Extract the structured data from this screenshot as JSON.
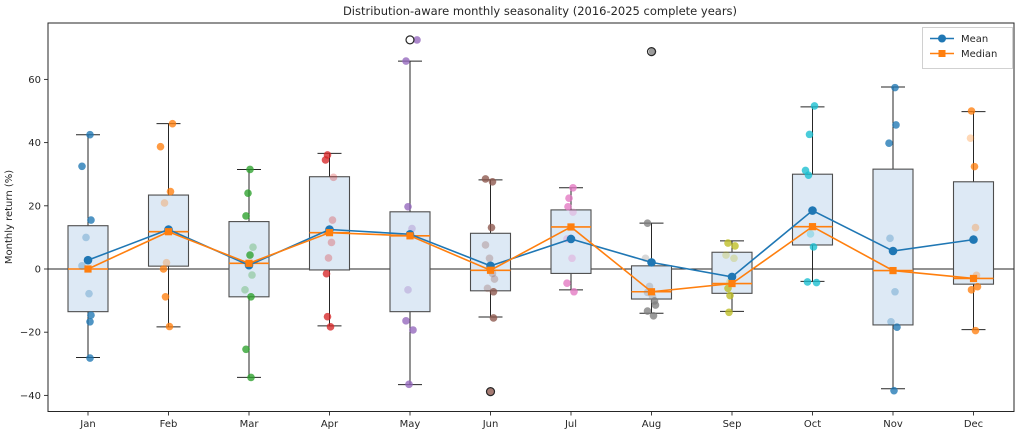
{
  "title": "Distribution-aware monthly seasonality (2016-2025 complete years)",
  "ylabel": "Monthly return (%)",
  "legend": {
    "items": [
      {
        "label": "Mean",
        "color": "#1f77b4",
        "marker": "circle"
      },
      {
        "label": "Median",
        "color": "#ff7f0e",
        "marker": "square"
      }
    ]
  },
  "colors": {
    "axis": "#262626",
    "box_fill": "#dde9f5",
    "box_edge": "#4d4d4d",
    "mean_line": "#1f77b4",
    "median_line": "#ff7f0e"
  },
  "chart_data": {
    "type": "box",
    "title": "Distribution-aware monthly seasonality (2016-2025 complete years)",
    "xlabel": "",
    "ylabel": "Monthly return (%)",
    "categories": [
      "Jan",
      "Feb",
      "Mar",
      "Apr",
      "May",
      "Jun",
      "Jul",
      "Aug",
      "Sep",
      "Oct",
      "Nov",
      "Dec"
    ],
    "yticks": [
      -40,
      -20,
      0,
      20,
      40,
      60
    ],
    "ylim": [
      -45,
      78
    ],
    "grid": false,
    "legend_position": "upper right",
    "zero_line": 0,
    "series": [
      {
        "name": "Mean",
        "marker": "circle",
        "color": "#1f77b4",
        "values": [
          2.8,
          12.5,
          1.2,
          12.5,
          11.0,
          1.0,
          9.5,
          2.1,
          -2.5,
          18.5,
          5.7,
          9.3
        ]
      },
      {
        "name": "Median",
        "marker": "square",
        "color": "#ff7f0e",
        "values": [
          0.0,
          11.8,
          1.8,
          11.5,
          10.5,
          -0.4,
          13.3,
          -7.2,
          -4.6,
          13.4,
          -0.5,
          -3.0
        ]
      }
    ],
    "boxes": [
      {
        "month": "Jan",
        "whislo": -28.0,
        "q1": -13.5,
        "med": 0.0,
        "q3": 13.7,
        "whishi": 42.5,
        "fliers": []
      },
      {
        "month": "Feb",
        "whislo": -18.3,
        "q1": 0.9,
        "med": 11.8,
        "q3": 23.4,
        "whishi": 46.0,
        "fliers": []
      },
      {
        "month": "Mar",
        "whislo": -34.3,
        "q1": -8.8,
        "med": 1.8,
        "q3": 15.0,
        "whishi": 31.5,
        "fliers": []
      },
      {
        "month": "Apr",
        "whislo": -18.0,
        "q1": -0.3,
        "med": 11.5,
        "q3": 29.2,
        "whishi": 36.6,
        "fliers": []
      },
      {
        "month": "May",
        "whislo": -36.6,
        "q1": -13.5,
        "med": 10.5,
        "q3": 18.1,
        "whishi": 65.8,
        "fliers": [
          72.5
        ]
      },
      {
        "month": "Jun",
        "whislo": -15.2,
        "q1": -6.9,
        "med": -0.4,
        "q3": 11.3,
        "whishi": 28.2,
        "fliers": [
          -38.8
        ]
      },
      {
        "month": "Jul",
        "whislo": -6.6,
        "q1": -1.4,
        "med": 13.3,
        "q3": 18.7,
        "whishi": 25.7,
        "fliers": []
      },
      {
        "month": "Aug",
        "whislo": -14.0,
        "q1": -9.5,
        "med": -7.2,
        "q3": 1.0,
        "whishi": 14.5,
        "fliers": [
          68.8
        ]
      },
      {
        "month": "Sep",
        "whislo": -13.4,
        "q1": -7.7,
        "med": -4.6,
        "q3": 5.3,
        "whishi": 8.9,
        "fliers": []
      },
      {
        "month": "Oct",
        "whislo": -3.9,
        "q1": 7.6,
        "med": 13.4,
        "q3": 30.0,
        "whishi": 51.3,
        "fliers": []
      },
      {
        "month": "Nov",
        "whislo": -37.9,
        "q1": -17.7,
        "med": -0.5,
        "q3": 31.6,
        "whishi": 57.6,
        "fliers": []
      },
      {
        "month": "Dec",
        "whislo": -19.2,
        "q1": -4.8,
        "med": -3.0,
        "q3": 27.6,
        "whishi": 49.8,
        "fliers": []
      }
    ],
    "points": [
      {
        "month": "Jan",
        "color": "#1f77b4",
        "values": [
          [
            42.5,
            2,
            0
          ],
          [
            32.5,
            -6,
            0
          ],
          [
            15.5,
            3,
            0
          ],
          [
            10,
            -2,
            1
          ],
          [
            1,
            -6,
            1
          ],
          [
            -7.8,
            1,
            1
          ],
          [
            -14.6,
            3,
            0
          ],
          [
            -16.7,
            2,
            0
          ],
          [
            -28.2,
            2,
            0
          ]
        ]
      },
      {
        "month": "Feb",
        "color": "#ff7f0e",
        "values": [
          [
            46,
            4,
            0
          ],
          [
            38.7,
            -8,
            0
          ],
          [
            24.5,
            2,
            0
          ],
          [
            20.9,
            -4,
            1
          ],
          [
            12,
            1,
            1
          ],
          [
            2,
            -2,
            1
          ],
          [
            0,
            -5,
            0
          ],
          [
            -8.8,
            -3,
            0
          ],
          [
            -18.2,
            1,
            0
          ]
        ]
      },
      {
        "month": "Mar",
        "color": "#2ca02c",
        "values": [
          [
            31.5,
            1,
            0
          ],
          [
            24,
            -1,
            0
          ],
          [
            16.8,
            -3,
            0
          ],
          [
            6.9,
            4,
            1
          ],
          [
            4.4,
            1,
            0
          ],
          [
            -1.9,
            3,
            1
          ],
          [
            -6.6,
            -4,
            1
          ],
          [
            -8.8,
            2,
            0
          ],
          [
            -25.4,
            -3,
            0
          ],
          [
            -34.3,
            2,
            0
          ]
        ]
      },
      {
        "month": "Apr",
        "color": "#d62728",
        "values": [
          [
            36.1,
            -2,
            0
          ],
          [
            34.5,
            -4,
            0
          ],
          [
            29,
            4,
            1
          ],
          [
            15.5,
            3,
            1
          ],
          [
            8.4,
            2,
            1
          ],
          [
            3.5,
            -1,
            1
          ],
          [
            -1.5,
            -3,
            0
          ],
          [
            -15.1,
            -2,
            0
          ],
          [
            -18.3,
            1,
            0
          ]
        ]
      },
      {
        "month": "May",
        "color": "#9467bd",
        "values": [
          [
            72.5,
            7,
            0
          ],
          [
            65.8,
            -4,
            0
          ],
          [
            19.7,
            -2,
            0
          ],
          [
            12.8,
            2,
            1
          ],
          [
            -6.6,
            -2,
            1
          ],
          [
            -16.4,
            -4,
            0
          ],
          [
            -19.3,
            3,
            0
          ],
          [
            -36.5,
            -1,
            0
          ]
        ]
      },
      {
        "month": "Jun",
        "color": "#8c564b",
        "values": [
          [
            28.5,
            -5,
            0
          ],
          [
            27.6,
            2,
            0
          ],
          [
            13.1,
            1,
            0
          ],
          [
            7.6,
            -5,
            1
          ],
          [
            3.4,
            -1,
            1
          ],
          [
            -1.4,
            2,
            1
          ],
          [
            -3.2,
            4,
            1
          ],
          [
            -6.1,
            -3,
            1
          ],
          [
            -7.2,
            3,
            0
          ],
          [
            -15.5,
            3,
            0
          ],
          [
            -38.8,
            0,
            0
          ]
        ]
      },
      {
        "month": "Jul",
        "color": "#e377c2",
        "values": [
          [
            25.7,
            2,
            0
          ],
          [
            22.4,
            -2,
            0
          ],
          [
            19.7,
            -3,
            0
          ],
          [
            18,
            2,
            1
          ],
          [
            9.5,
            -4,
            1
          ],
          [
            3.4,
            1,
            1
          ],
          [
            -4.5,
            -4,
            0
          ],
          [
            -7.2,
            3,
            0
          ]
        ]
      },
      {
        "month": "Aug",
        "color": "#7f7f7f",
        "values": [
          [
            68.8,
            1,
            0
          ],
          [
            14.5,
            -4,
            0
          ],
          [
            3.4,
            -6,
            1
          ],
          [
            -5.5,
            -2,
            1
          ],
          [
            -7.4,
            -4,
            1
          ],
          [
            -8.7,
            1,
            1
          ],
          [
            -10.1,
            3,
            0
          ],
          [
            -11.4,
            4,
            0
          ],
          [
            -13.3,
            -4,
            0
          ],
          [
            -14.8,
            2,
            0
          ]
        ]
      },
      {
        "month": "Sep",
        "color": "#bcbd22",
        "values": [
          [
            8.2,
            -4,
            0
          ],
          [
            7.3,
            3,
            0
          ],
          [
            4.4,
            -6,
            1
          ],
          [
            3.4,
            2,
            1
          ],
          [
            -4,
            -2,
            1
          ],
          [
            -6.1,
            -4,
            0
          ],
          [
            -8.4,
            -2,
            0
          ],
          [
            -13.7,
            -3,
            0
          ]
        ]
      },
      {
        "month": "Oct",
        "color": "#17becf",
        "values": [
          [
            51.6,
            2,
            0
          ],
          [
            42.6,
            -3,
            0
          ],
          [
            31.2,
            -7,
            0
          ],
          [
            29.7,
            -4,
            0
          ],
          [
            11.1,
            -2,
            1
          ],
          [
            7,
            1,
            0
          ],
          [
            -4.1,
            -5,
            0
          ],
          [
            -4.3,
            4,
            0
          ]
        ]
      },
      {
        "month": "Nov",
        "color": "#1f77b4",
        "values": [
          [
            57.4,
            2,
            0
          ],
          [
            45.6,
            3,
            0
          ],
          [
            39.8,
            -4,
            0
          ],
          [
            9.7,
            -3,
            1
          ],
          [
            -7.2,
            2,
            1
          ],
          [
            -16.7,
            -2,
            1
          ],
          [
            -18.4,
            4,
            0
          ],
          [
            -38.5,
            1,
            0
          ]
        ]
      },
      {
        "month": "Dec",
        "color": "#ff7f0e",
        "values": [
          [
            50,
            -2,
            0
          ],
          [
            41.4,
            -3,
            1
          ],
          [
            32.4,
            1,
            0
          ],
          [
            13.1,
            2,
            1
          ],
          [
            -2,
            3,
            1
          ],
          [
            -5.6,
            4,
            0
          ],
          [
            -6.6,
            -2,
            0
          ],
          [
            -19.5,
            2,
            0
          ]
        ]
      }
    ]
  }
}
